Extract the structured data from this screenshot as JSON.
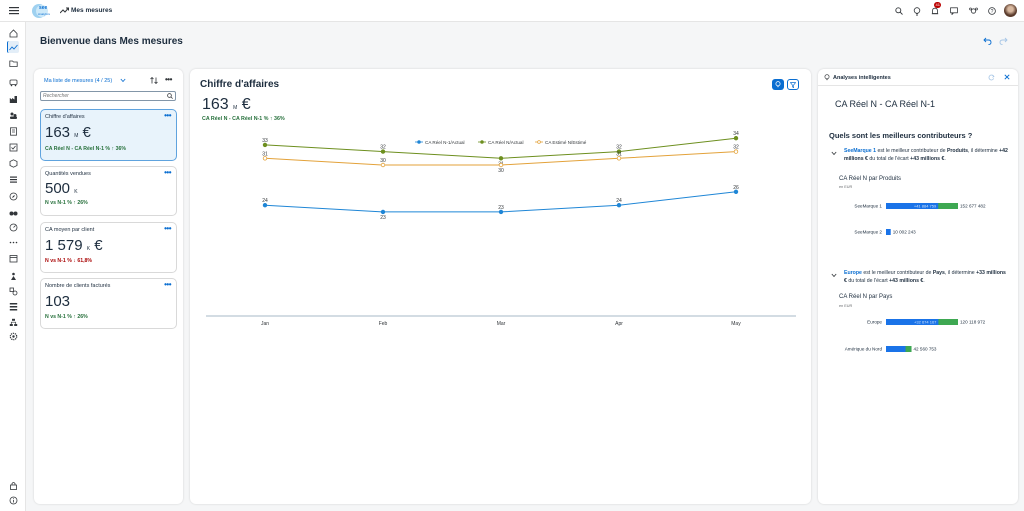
{
  "shell": {
    "logo_text_1": "see",
    "logo_text_2": "Analytics",
    "app_title": "Mes mesures",
    "notification_count": "41"
  },
  "page": {
    "title": "Bienvenue dans Mes mesures"
  },
  "measures_panel": {
    "list_label": "Ma liste de mesures (4 / 25)",
    "search_placeholder": "Rechercher",
    "cards": [
      {
        "title": "Chiffre d'affaires",
        "value": "163",
        "unit": "M",
        "currency": "€",
        "comparison": "CA Réel N - CA Réel N-1 %",
        "delta": "36%",
        "trend": "up",
        "selected": true
      },
      {
        "title": "Quantités vendues",
        "value": "500",
        "unit": "K",
        "currency": "",
        "comparison": "N vs N-1 %",
        "delta": "26%",
        "trend": "up",
        "selected": false
      },
      {
        "title": "CA moyen par client",
        "value": "1 579",
        "unit": "K",
        "currency": "€",
        "comparison": "N vs N-1 %",
        "delta": "61,8%",
        "trend": "down",
        "selected": false
      },
      {
        "title": "Nombre de clients facturés",
        "value": "103",
        "unit": "",
        "currency": "",
        "comparison": "N vs N-1 %",
        "delta": "26%",
        "trend": "up",
        "selected": false
      }
    ]
  },
  "main": {
    "title": "Chiffre d'affaires",
    "value": "163",
    "unit": "M",
    "currency": "€",
    "comparison": "CA Réel N - CA Réel N-1 %",
    "delta": "36%"
  },
  "chart_data": {
    "type": "line",
    "categories": [
      "Jan",
      "Feb",
      "Mar",
      "Apr",
      "May"
    ],
    "series": [
      {
        "name": "CA Réel N-1/Actual",
        "color": "#1f86d6",
        "values": [
          24,
          23,
          23,
          24,
          26
        ],
        "marker": "filled"
      },
      {
        "name": "CA Réel N/Actual",
        "color": "#6d8f1f",
        "values": [
          33,
          32,
          31,
          32,
          34
        ],
        "marker": "filled"
      },
      {
        "name": "CA Estimé N/Estimé",
        "color": "#e3a23a",
        "values": [
          31,
          30,
          30,
          31,
          32
        ],
        "marker": "hollow"
      }
    ],
    "legend_position": "top",
    "grid": false
  },
  "insights": {
    "header": "Analyses intelligentes",
    "title": "CA Réel N - CA Réel N-1",
    "question": "Quels sont les meilleurs contributeurs ?",
    "sections": [
      {
        "text_lead": "SeeMarque 1",
        "text_1": " est le meilleur contributeur de ",
        "text_bold_1": "Produits",
        "text_2": ", il détermine ",
        "text_bold_2": "+42 millions €",
        "text_3": " du total de l'écart ",
        "text_bold_3": "+43 millions €",
        "text_4": ".",
        "chart_title": "CA Réel N par Produits",
        "chart_unit": "en EUR",
        "bars": [
          {
            "label": "SeeMarque 1",
            "inner_label": "+41 884 759",
            "value_label": "152 677 482",
            "total": 152677482,
            "delta": 41884759
          },
          {
            "label": "SeeMarque 2",
            "inner_label": "",
            "value_label": "10 002 243",
            "total": 10002243,
            "delta": 0
          }
        ]
      },
      {
        "text_lead": "Europe",
        "text_1": " est le meilleur contributeur de ",
        "text_bold_1": "Pays",
        "text_2": ", il détermine ",
        "text_bold_2": "+33 millions €",
        "text_3": " du total de l'écart ",
        "text_bold_3": "+43 millions €",
        "text_4": ".",
        "chart_title": "CA Réel N par Pays",
        "chart_unit": "en EUR",
        "bars": [
          {
            "label": "Europe",
            "inner_label": "+32 674 167",
            "value_label": "120 118 972",
            "total": 120118972,
            "delta": 32674167
          },
          {
            "label": "Amérique du Nord",
            "inner_label": "",
            "value_label": "42 560 753",
            "total": 42560753,
            "delta": 10000000
          }
        ]
      }
    ]
  },
  "icons": {
    "blue": "#0a6ed1",
    "text": "#1d2d3e"
  }
}
